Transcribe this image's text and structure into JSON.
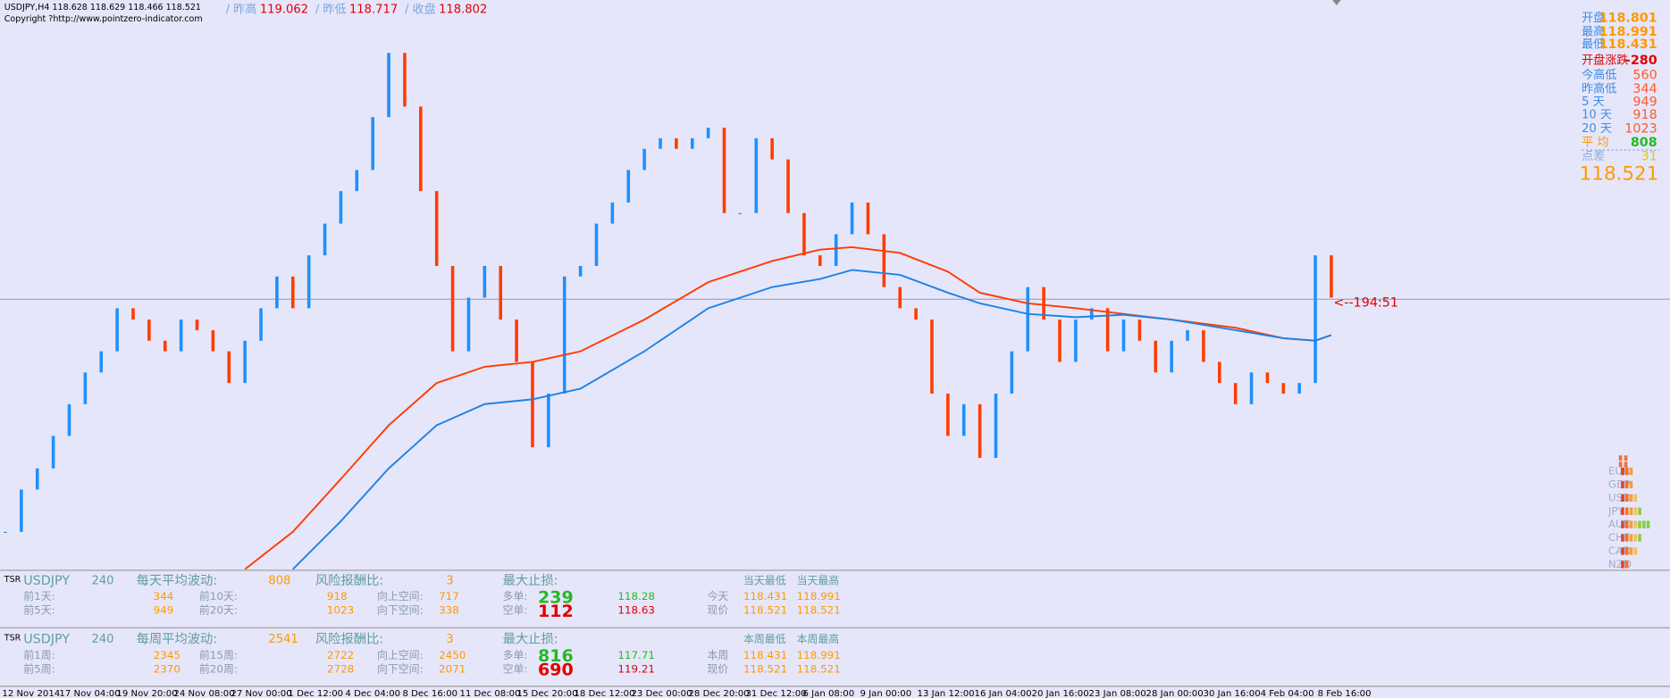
{
  "header": {
    "symbol_line": "USDJPY,H4  118.628 118.629 118.466 118.521",
    "copyright": "Copyright ?http://www.pointzero-indicator.com",
    "prev": [
      {
        "label": "/ 昨高",
        "value": 119.062
      },
      {
        "label": "/ 昨低",
        "value": 118.717
      },
      {
        "label": "/ 收盘",
        "value": 118.802
      }
    ]
  },
  "info_panel": {
    "rows": [
      {
        "label": "开盘",
        "value": 118.801
      },
      {
        "label": "最高",
        "value": 118.991
      },
      {
        "label": "最低",
        "value": 118.431
      },
      {
        "label": "开盘涨跌",
        "value": -280
      },
      {
        "label": "今高低",
        "value": 560
      },
      {
        "label": "昨高低",
        "value": 344
      },
      {
        "label": "5  天",
        "value": 949
      },
      {
        "label": "10 天",
        "value": 918
      },
      {
        "label": "20 天",
        "value": 1023
      },
      {
        "label": "平  均",
        "value": 808
      },
      {
        "label": "点差",
        "value": 31
      }
    ],
    "price": 118.521
  },
  "strength": [
    "EUR",
    "GBP",
    "USD",
    "JPY",
    "AUD",
    "CHF",
    "CAD",
    "NZD"
  ],
  "chart": {
    "type": "candlestick",
    "ylim": [
      115.2,
      122.2
    ],
    "closes": [
      115.66,
      116.18,
      116.44,
      116.84,
      117.23,
      117.62,
      117.88,
      118.41,
      118.27,
      118.01,
      117.88,
      118.27,
      118.14,
      117.88,
      117.49,
      118.01,
      118.41,
      118.8,
      118.41,
      119.06,
      119.45,
      119.85,
      120.11,
      120.76,
      121.55,
      120.89,
      119.85,
      118.93,
      117.88,
      118.54,
      118.93,
      118.27,
      117.75,
      116.7,
      117.36,
      118.8,
      118.93,
      119.45,
      119.71,
      120.11,
      120.37,
      120.5,
      120.37,
      120.5,
      120.63,
      119.58,
      119.58,
      120.5,
      120.24,
      119.58,
      119.06,
      118.93,
      119.32,
      119.71,
      119.32,
      118.67,
      118.41,
      118.27,
      117.36,
      116.84,
      117.23,
      116.57,
      117.36,
      117.88,
      118.67,
      118.27,
      117.75,
      118.27,
      118.41,
      117.88,
      118.27,
      118.01,
      117.62,
      118.01,
      118.14,
      117.75,
      117.49,
      117.23,
      117.62,
      117.49,
      117.36,
      117.49,
      119.06,
      118.54
    ],
    "ma": [
      {
        "color": "#ff3c00",
        "x": [
          15,
          18,
          21,
          24,
          27,
          30,
          33,
          36,
          40,
          44,
          48,
          51,
          53,
          56,
          59,
          61,
          64,
          67,
          70,
          73,
          77,
          80,
          82,
          83
        ],
        "values": [
          115.2,
          115.66,
          116.31,
          116.97,
          117.49,
          117.69,
          117.75,
          117.88,
          118.27,
          118.73,
          118.99,
          119.13,
          119.16,
          119.09,
          118.86,
          118.6,
          118.47,
          118.41,
          118.34,
          118.27,
          118.17,
          118.04,
          118.01,
          118.08
        ]
      },
      {
        "color": "#1e82e6",
        "x": [
          18,
          21,
          24,
          27,
          30,
          33,
          36,
          40,
          44,
          48,
          51,
          53,
          56,
          59,
          61,
          64,
          67,
          70,
          73,
          77,
          80,
          82,
          83
        ],
        "values": [
          115.2,
          115.79,
          116.44,
          116.97,
          117.23,
          117.29,
          117.42,
          117.88,
          118.41,
          118.67,
          118.77,
          118.88,
          118.82,
          118.6,
          118.47,
          118.34,
          118.3,
          118.33,
          118.27,
          118.14,
          118.04,
          118.01,
          118.08
        ]
      }
    ],
    "price_line_label": "<--194:51"
  },
  "x_axis": {
    "labels": [
      "12 Nov 2014",
      "17 Nov 04:00",
      "19 Nov 20:00",
      "24 Nov 08:00",
      "27 Nov 00:00",
      "1 Dec 12:00",
      "4 Dec 04:00",
      "8 Dec 16:00",
      "11 Dec 08:00",
      "15 Dec 20:00",
      "18 Dec 12:00",
      "23 Dec 00:00",
      "28 Dec 20:00",
      "31 Dec 12:00",
      "6 Jan 08:00",
      "9 Jan 00:00",
      "13 Jan 12:00",
      "16 Jan 04:00",
      "20 Jan 16:00",
      "23 Jan 08:00",
      "28 Jan 00:00",
      "30 Jan 16:00",
      "4 Feb 04:00",
      "8 Feb 16:00"
    ]
  },
  "panels": [
    {
      "tag": "TSR",
      "symbol": "USDJPY",
      "period": 240,
      "avg_label": "每天平均波动:",
      "avg": 808,
      "rr_label": "风险报酬比:",
      "rr": 3,
      "sl_label": "最大止损:",
      "stats": [
        [
          "前1天:",
          344,
          "前10天:",
          918
        ],
        [
          "前5天:",
          949,
          "前20天:",
          1023
        ]
      ],
      "space": [
        [
          "向上空间:",
          717
        ],
        [
          "向下空间:",
          338
        ]
      ],
      "orders": [
        [
          "多单:",
          239,
          118.28
        ],
        [
          "空单:",
          112,
          118.63
        ]
      ],
      "range_head": [
        "当天最低",
        "当天最高"
      ],
      "range": [
        [
          "今天",
          118.431,
          118.991
        ],
        [
          "现价",
          118.521,
          118.521
        ]
      ]
    },
    {
      "tag": "TSR",
      "symbol": "USDJPY",
      "period": 240,
      "avg_label": "每周平均波动:",
      "avg": 2541,
      "rr_label": "风险报酬比:",
      "rr": 3,
      "sl_label": "最大止损:",
      "stats": [
        [
          "前1周:",
          2345,
          "前15周:",
          2722
        ],
        [
          "前5周:",
          2370,
          "前20周:",
          2728
        ]
      ],
      "space": [
        [
          "向上空间:",
          2450
        ],
        [
          "向下空间:",
          2071
        ]
      ],
      "orders": [
        [
          "多单:",
          816,
          117.71
        ],
        [
          "空单:",
          690,
          119.21
        ]
      ],
      "range_head": [
        "本周最低",
        "本周最高"
      ],
      "range": [
        [
          "本周",
          118.431,
          118.991
        ],
        [
          "现价",
          118.521,
          118.521
        ]
      ]
    }
  ]
}
